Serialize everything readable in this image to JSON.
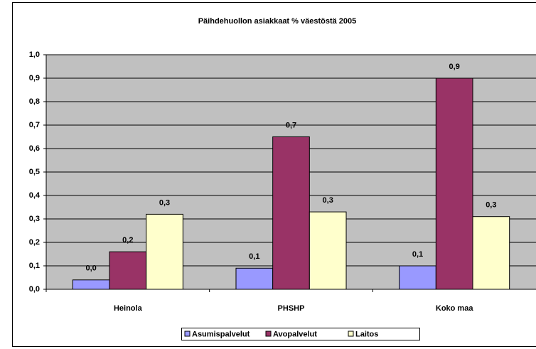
{
  "chart_data": {
    "type": "bar",
    "title": "Päihdehuollon asiakkaat % väestöstä 2005",
    "categories": [
      "Heinola",
      "PHSHP",
      "Koko maa"
    ],
    "series": [
      {
        "name": "Asumispalvelut",
        "color": "#9999ff",
        "values": [
          0.04,
          0.09,
          0.1
        ],
        "value_labels": [
          "0,0",
          "0,1",
          "0,1"
        ]
      },
      {
        "name": "Avopalvelut",
        "color": "#993366",
        "values": [
          0.16,
          0.65,
          0.9
        ],
        "value_labels": [
          "0,2",
          "0,7",
          "0,9"
        ]
      },
      {
        "name": "Laitos",
        "color": "#ffffcc",
        "values": [
          0.32,
          0.33,
          0.31
        ],
        "value_labels": [
          "0,3",
          "0,3",
          "0,3"
        ]
      }
    ],
    "ylim": [
      0,
      1.0
    ],
    "yticks": [
      {
        "value": 0,
        "label": "0,0"
      },
      {
        "value": 0.1,
        "label": "0,1"
      },
      {
        "value": 0.2,
        "label": "0,2"
      },
      {
        "value": 0.3,
        "label": "0,3"
      },
      {
        "value": 0.4,
        "label": "0,4"
      },
      {
        "value": 0.5,
        "label": "0,5"
      },
      {
        "value": 0.6,
        "label": "0,6"
      },
      {
        "value": 0.7,
        "label": "0,7"
      },
      {
        "value": 0.8,
        "label": "0,8"
      },
      {
        "value": 0.9,
        "label": "0,9"
      },
      {
        "value": 1.0,
        "label": "1,0"
      }
    ],
    "grid": true,
    "plot_background": "#c0c0c0",
    "legend": "bottom"
  }
}
